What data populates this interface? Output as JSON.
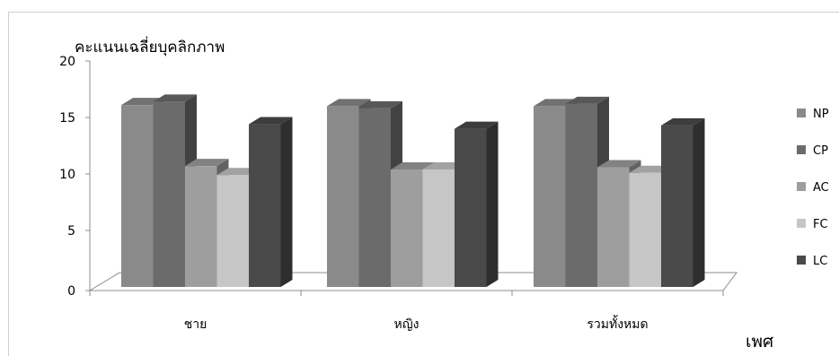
{
  "chart_data": {
    "type": "bar",
    "ylabel": "คะแนนเฉลี่ยบุคลิกภาพ",
    "xlabel": "เพศ",
    "categories": [
      "ชาย",
      "หญิง",
      "รวมทั้งหมด"
    ],
    "series": [
      {
        "name": "NP",
        "values": [
          16.1,
          16.0,
          16.0
        ],
        "color": "#8a8a8a"
      },
      {
        "name": "CP",
        "values": [
          16.4,
          15.8,
          16.2
        ],
        "color": "#6b6b6b"
      },
      {
        "name": "AC",
        "values": [
          10.7,
          10.4,
          10.6
        ],
        "color": "#9e9e9e"
      },
      {
        "name": "FC",
        "values": [
          9.9,
          10.4,
          10.1
        ],
        "color": "#c6c6c6"
      },
      {
        "name": "LC",
        "values": [
          14.4,
          14.0,
          14.3
        ],
        "color": "#4a4a4a"
      }
    ],
    "ylim": [
      0,
      20
    ],
    "yticks": [
      0,
      5,
      10,
      15,
      20
    ],
    "legend": "right",
    "grid": false,
    "style": "3d-clustered-column"
  }
}
